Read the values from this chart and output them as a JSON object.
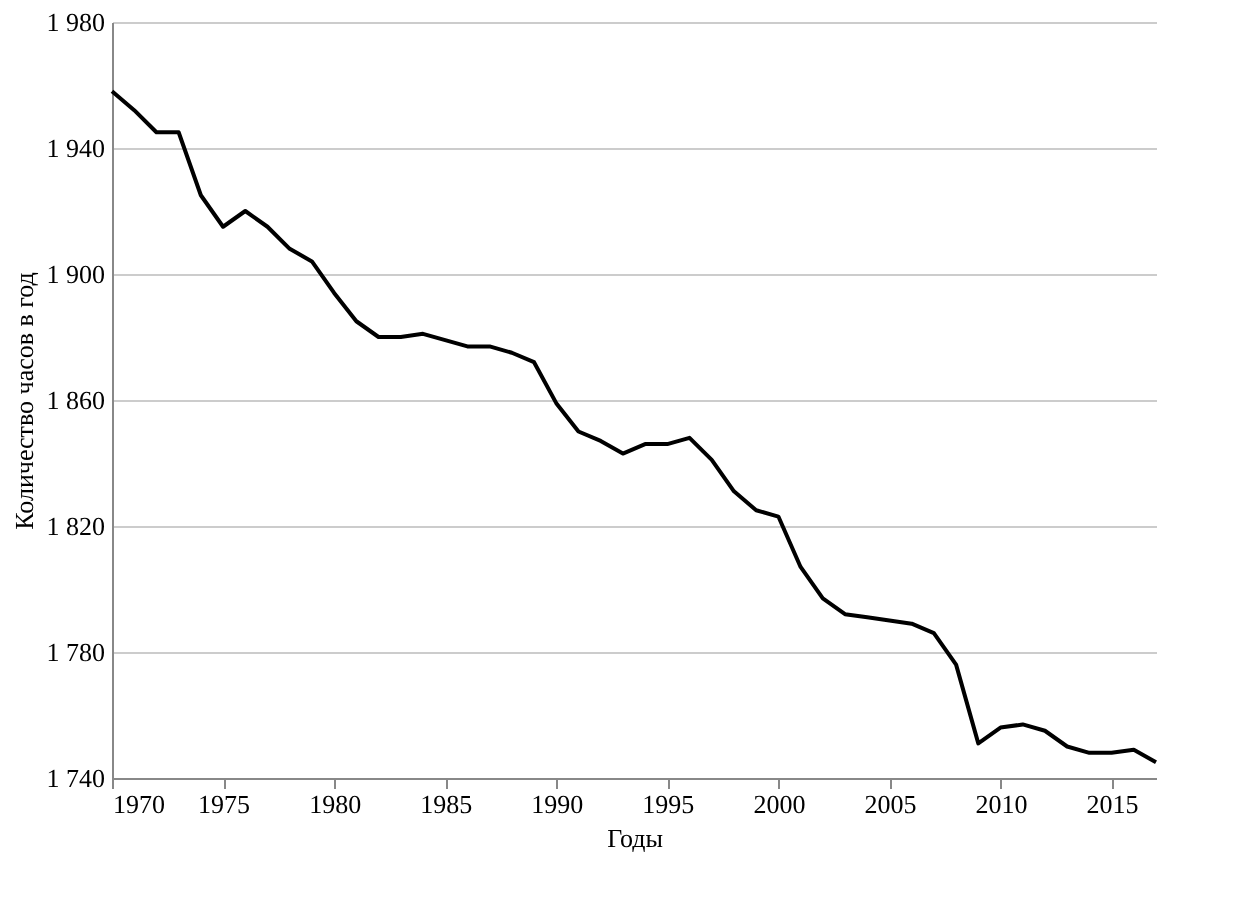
{
  "chart_data": {
    "type": "line",
    "xlabel": "Годы",
    "ylabel": "Количество часов в год",
    "x": [
      1970,
      1971,
      1972,
      1973,
      1974,
      1975,
      1976,
      1977,
      1978,
      1979,
      1980,
      1981,
      1982,
      1983,
      1984,
      1985,
      1986,
      1987,
      1988,
      1989,
      1990,
      1991,
      1992,
      1993,
      1994,
      1995,
      1996,
      1997,
      1998,
      1999,
      2000,
      2001,
      2002,
      2003,
      2004,
      2005,
      2006,
      2007,
      2008,
      2009,
      2010,
      2011,
      2012,
      2013,
      2014,
      2015,
      2016,
      2017
    ],
    "series": [
      {
        "color": "#000000",
        "values": [
          1958,
          1952,
          1945,
          1945,
          1925,
          1915,
          1920,
          1915,
          1908,
          1904,
          1894,
          1885,
          1880,
          1880,
          1881,
          1879,
          1877,
          1877,
          1875,
          1872,
          1859,
          1850,
          1847,
          1843,
          1846,
          1846,
          1848,
          1841,
          1831,
          1825,
          1823,
          1807,
          1797,
          1792,
          1791,
          1790,
          1789,
          1786,
          1776,
          1751,
          1756,
          1757,
          1755,
          1750,
          1748,
          1748,
          1749,
          1745
        ]
      }
    ],
    "xlim": [
      1970,
      2017
    ],
    "xticks": [
      1970,
      1975,
      1980,
      1985,
      1990,
      1995,
      2000,
      2005,
      2010,
      2015
    ],
    "ylim": [
      1740,
      1980
    ],
    "yticks": [
      {
        "value": 1740,
        "label": "1 740"
      },
      {
        "value": 1780,
        "label": "1 780"
      },
      {
        "value": 1820,
        "label": "1 820"
      },
      {
        "value": 1860,
        "label": "1 860"
      },
      {
        "value": 1900,
        "label": "1 900"
      },
      {
        "value": 1940,
        "label": "1 940"
      },
      {
        "value": 1980,
        "label": "1 980"
      }
    ],
    "grid": "y",
    "marker": "none",
    "line_style": "solid"
  }
}
